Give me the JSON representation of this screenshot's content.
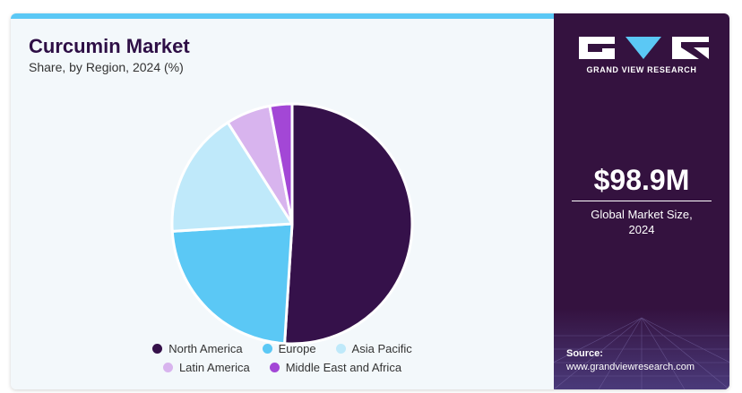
{
  "header": {
    "title": "Curcumin Market",
    "subtitle": "Share, by Region, 2024 (%)"
  },
  "chart_data": {
    "type": "pie",
    "title": "Curcumin Market",
    "subtitle": "Share, by Region, 2024 (%)",
    "categories": [
      "North America",
      "Europe",
      "Asia Pacific",
      "Latin America",
      "Middle East and Africa"
    ],
    "values": [
      51,
      23,
      17,
      6,
      3
    ],
    "colors": [
      "#35114a",
      "#5bc8f5",
      "#bfe9fa",
      "#d8b4ee",
      "#a347d6"
    ],
    "legend_position": "bottom"
  },
  "legend": {
    "items": [
      {
        "label": "North America",
        "color": "#35114a"
      },
      {
        "label": "Europe",
        "color": "#5bc8f5"
      },
      {
        "label": "Asia Pacific",
        "color": "#bfe9fa"
      },
      {
        "label": "Latin America",
        "color": "#d8b4ee"
      },
      {
        "label": "Middle East and Africa",
        "color": "#a347d6"
      }
    ]
  },
  "sidebar": {
    "brand": "GRAND VIEW RESEARCH",
    "logo_icon": "gvr-logo-icon",
    "market_size": "$98.9M",
    "market_size_label_line1": "Global Market Size,",
    "market_size_label_line2": "2024",
    "source_label": "Source:",
    "source_url": "www.grandviewresearch.com"
  },
  "theme": {
    "accent": "#5bc8f5",
    "sidebar_bg": "#34123f",
    "title_color": "#2e0f46"
  }
}
